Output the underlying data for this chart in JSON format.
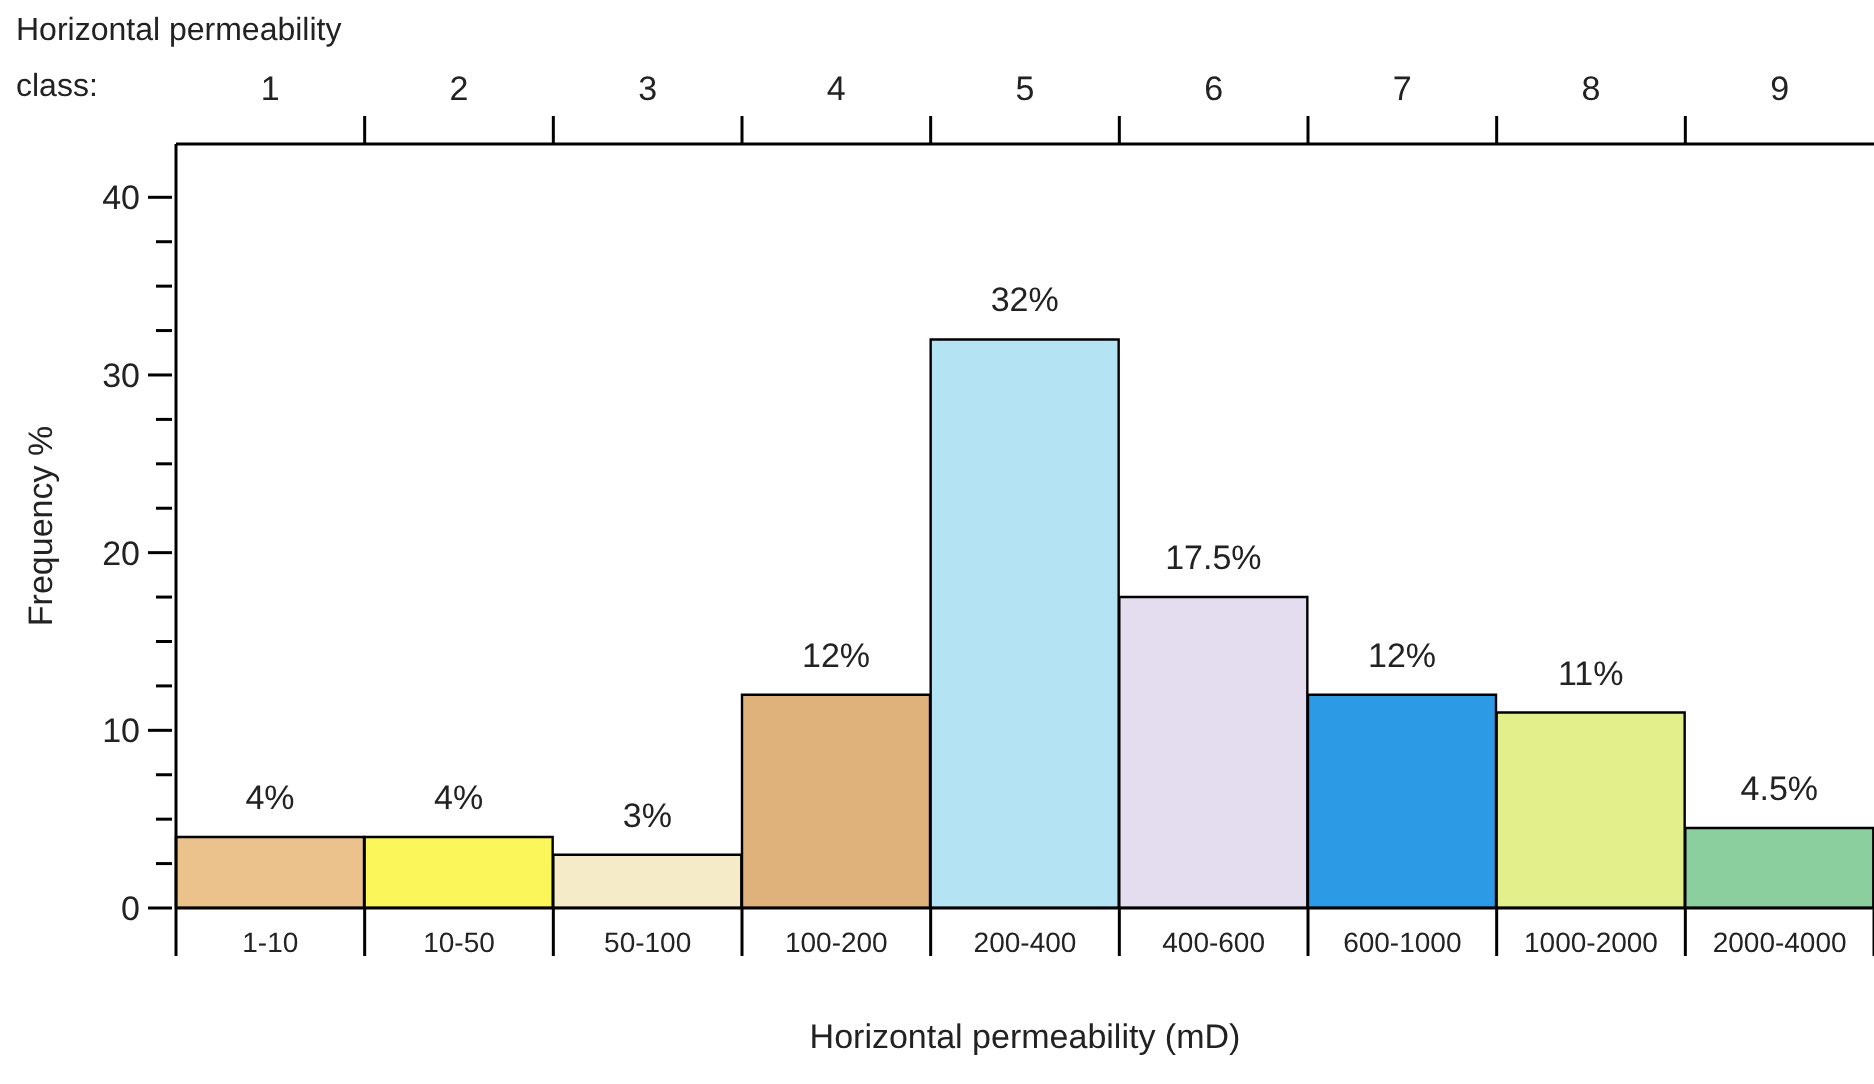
{
  "chart_data": {
    "type": "bar",
    "xlabel": "Horizontal permeability (mD)",
    "ylabel": "Frequency %",
    "x2label": "Horizontal permeability class:",
    "categories": [
      "1-10",
      "10-50",
      "50-100",
      "100-200",
      "200-400",
      "400-600",
      "600-1000",
      "1000-2000",
      "2000-4000"
    ],
    "values": [
      4,
      4,
      3,
      12,
      32,
      17.5,
      12,
      11,
      4.5
    ],
    "value_labels": [
      "4%",
      "4%",
      "3%",
      "12%",
      "32%",
      "17.5%",
      "12%",
      "11%",
      "4.5%"
    ],
    "colors": [
      "#ebc28c",
      "#fbf75a",
      "#f5ebc8",
      "#deb27a",
      "#b4e4f4",
      "#e4dcef",
      "#2c9ae4",
      "#e2ef8a",
      "#8ccf9e"
    ],
    "ylim": [
      0,
      43
    ],
    "yticks": [
      0,
      {
        "value": 2.5,
        "label": null
      },
      {
        "value": 5,
        "label": null
      },
      {
        "value": 7.5,
        "label": null
      },
      10,
      {
        "value": 12.5,
        "label": null
      },
      {
        "value": 15,
        "label": null
      },
      {
        "value": 17.5,
        "label": null
      },
      20,
      {
        "value": 22.5,
        "label": null
      },
      {
        "value": 25,
        "label": null
      },
      {
        "value": 27.5,
        "label": null
      },
      30,
      {
        "value": 32.5,
        "label": null
      },
      {
        "value": 35,
        "label": null
      },
      {
        "value": 37.5,
        "label": null
      },
      40
    ],
    "x2lim": [
      0.5,
      9.5
    ],
    "x2ticks": [
      1,
      2,
      3,
      4,
      5,
      6,
      7,
      8,
      9,
      {
        "value": 1.5,
        "label": null
      },
      {
        "value": 2.5,
        "label": null
      },
      {
        "value": 3.5,
        "label": null
      },
      {
        "value": 4.5,
        "label": null
      },
      {
        "value": 5.5,
        "label": null
      },
      {
        "value": 6.5,
        "label": null
      },
      {
        "value": 7.5,
        "label": null
      },
      {
        "value": 8.5,
        "label": null
      }
    ],
    "grid": false,
    "legend": false
  }
}
